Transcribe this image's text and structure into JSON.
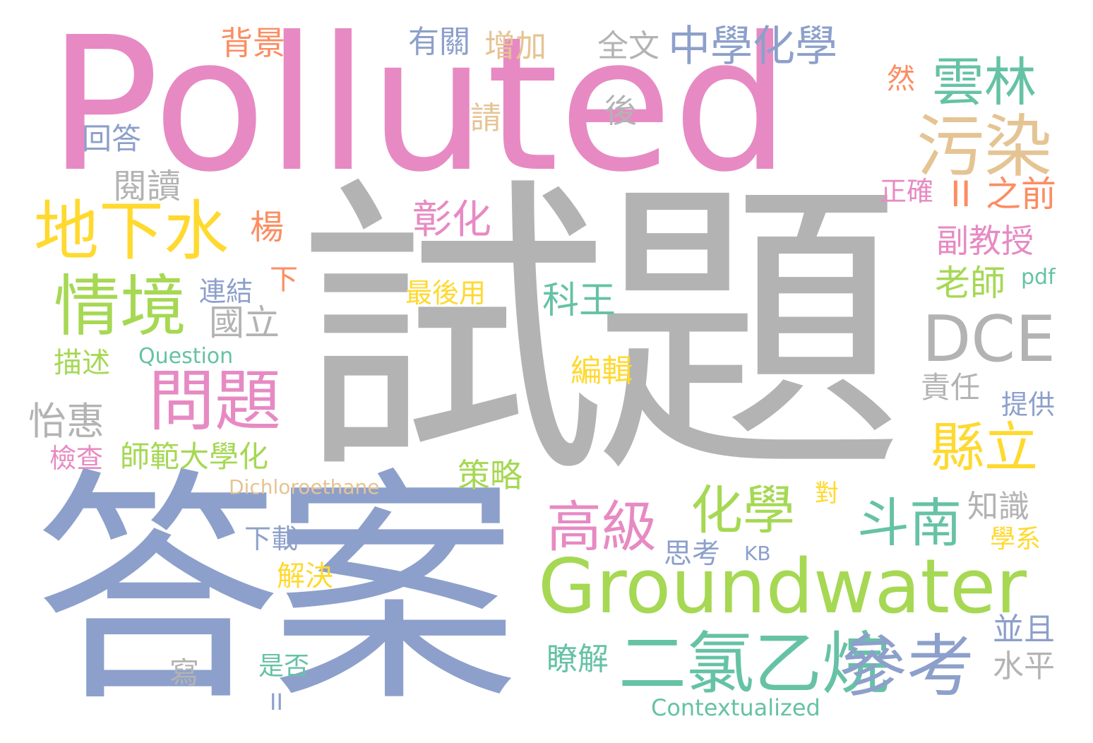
{
  "palette": {
    "pink": "#e78ac3",
    "grey": "#b3b3b3",
    "blue": "#8da0cb",
    "green": "#a6d854",
    "teal": "#66c2a5",
    "yellow": "#ffd92f",
    "tan": "#e5c494",
    "orange": "#fc8d62"
  },
  "words": [
    {
      "text": "Polluted",
      "color": "pink"
    },
    {
      "text": "試題",
      "color": "grey"
    },
    {
      "text": "答案",
      "color": "blue"
    },
    {
      "text": "Groundwater",
      "color": "green"
    },
    {
      "text": "污染",
      "color": "tan"
    },
    {
      "text": "雲林",
      "color": "teal"
    },
    {
      "text": "地下水",
      "color": "yellow"
    },
    {
      "text": "情境",
      "color": "green"
    },
    {
      "text": "問題",
      "color": "pink"
    },
    {
      "text": "DCE",
      "color": "grey"
    },
    {
      "text": "二氯乙烷",
      "color": "teal"
    },
    {
      "text": "參考",
      "color": "blue"
    },
    {
      "text": "高級",
      "color": "pink"
    },
    {
      "text": "化學",
      "color": "green"
    },
    {
      "text": "斗南",
      "color": "teal"
    },
    {
      "text": "縣立",
      "color": "yellow"
    },
    {
      "text": "中學化學",
      "color": "blue"
    },
    {
      "text": "背景",
      "color": "orange"
    },
    {
      "text": "有關",
      "color": "blue"
    },
    {
      "text": "增加",
      "color": "tan"
    },
    {
      "text": "全文",
      "color": "grey"
    },
    {
      "text": "然",
      "color": "orange"
    },
    {
      "text": "後",
      "color": "grey"
    },
    {
      "text": "請",
      "color": "tan"
    },
    {
      "text": "回答",
      "color": "blue"
    },
    {
      "text": "閱讀",
      "color": "grey"
    },
    {
      "text": "彰化",
      "color": "pink"
    },
    {
      "text": "楊",
      "color": "orange"
    },
    {
      "text": "正確",
      "color": "pink"
    },
    {
      "text": "之前",
      "color": "orange"
    },
    {
      "text": "II",
      "color": "orange"
    },
    {
      "text": "副教授",
      "color": "pink"
    },
    {
      "text": "老師",
      "color": "green"
    },
    {
      "text": "pdf",
      "color": "teal"
    },
    {
      "text": "連結",
      "color": "blue"
    },
    {
      "text": "下",
      "color": "orange"
    },
    {
      "text": "最後用",
      "color": "yellow"
    },
    {
      "text": "科王",
      "color": "teal"
    },
    {
      "text": "國立",
      "color": "grey"
    },
    {
      "text": "描述",
      "color": "green"
    },
    {
      "text": "Question",
      "color": "teal"
    },
    {
      "text": "編輯",
      "color": "yellow"
    },
    {
      "text": "責任",
      "color": "grey"
    },
    {
      "text": "提供",
      "color": "blue"
    },
    {
      "text": "怡惠",
      "color": "grey"
    },
    {
      "text": "檢查",
      "color": "pink"
    },
    {
      "text": "師範大學化",
      "color": "green"
    },
    {
      "text": "策略",
      "color": "green"
    },
    {
      "text": "Dichloroethane",
      "color": "tan"
    },
    {
      "text": "對",
      "color": "yellow"
    },
    {
      "text": "知識",
      "color": "grey"
    },
    {
      "text": "下載",
      "color": "blue"
    },
    {
      "text": "思考",
      "color": "blue"
    },
    {
      "text": "KB",
      "color": "blue"
    },
    {
      "text": "學系",
      "color": "yellow"
    },
    {
      "text": "解決",
      "color": "yellow"
    },
    {
      "text": "瞭解",
      "color": "teal"
    },
    {
      "text": "並且",
      "color": "blue"
    },
    {
      "text": "水平",
      "color": "grey"
    },
    {
      "text": "寫",
      "color": "grey"
    },
    {
      "text": "是否",
      "color": "teal"
    },
    {
      "text": "II",
      "color": "blue"
    },
    {
      "text": "Contextualized",
      "color": "teal"
    }
  ]
}
